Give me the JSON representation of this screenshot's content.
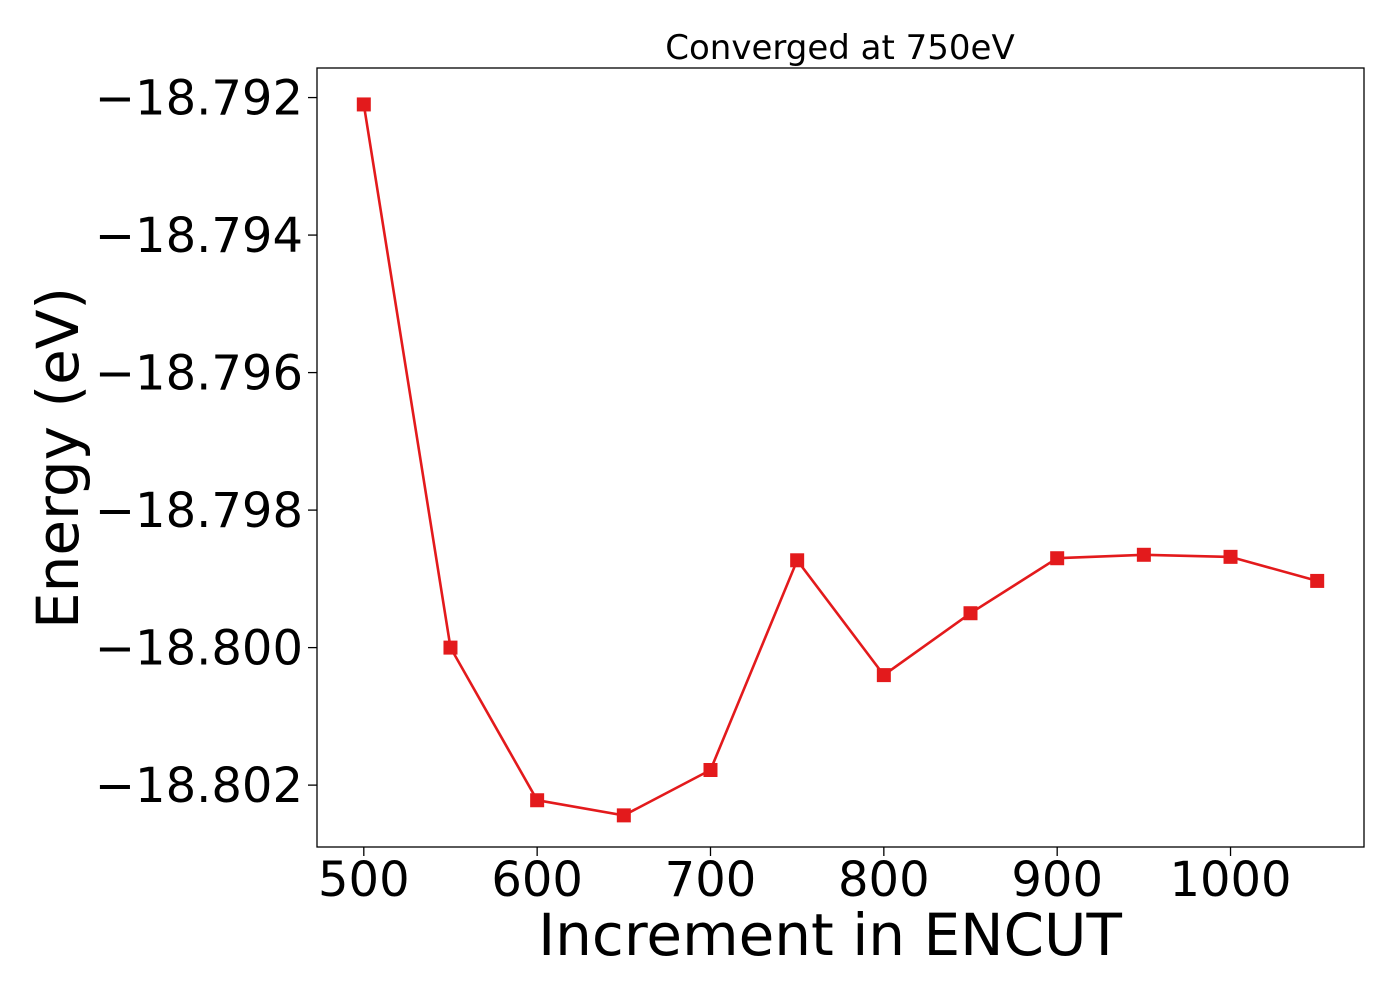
{
  "chart_data": {
    "type": "line",
    "title": "Converged at 750eV",
    "xlabel": "Increment in ENCUT",
    "ylabel": "Energy (eV)",
    "x": [
      500,
      550,
      600,
      650,
      700,
      750,
      800,
      850,
      900,
      950,
      1000,
      1050
    ],
    "series": [
      {
        "values": [
          -18.7921,
          -18.8,
          -18.80222,
          -18.80244,
          -18.80178,
          -18.79873,
          -18.8004,
          -18.7995,
          -18.7987,
          -18.79865,
          -18.79868,
          -18.79903
        ],
        "color": "#e31a1c",
        "marker": "square"
      }
    ],
    "xticks": [
      "500",
      "600",
      "700",
      "800",
      "900",
      "1000"
    ],
    "xtick_values": [
      500,
      600,
      700,
      800,
      900,
      1000
    ],
    "yticks": [
      "−18.792",
      "−18.794",
      "−18.796",
      "−18.798",
      "−18.800",
      "−18.802"
    ],
    "ytick_values": [
      -18.792,
      -18.794,
      -18.796,
      -18.798,
      -18.8,
      -18.802
    ],
    "xlim": [
      473,
      1077
    ],
    "ylim": [
      -18.8029,
      -18.79157
    ],
    "grid": false
  }
}
